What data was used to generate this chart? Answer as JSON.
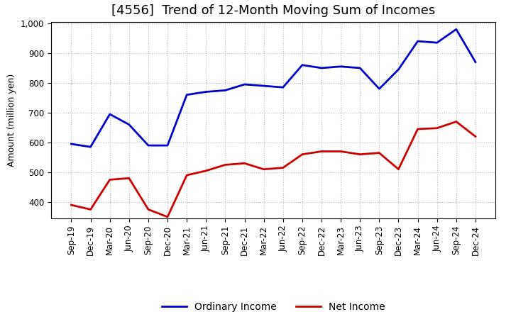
{
  "title": "[4556]  Trend of 12-Month Moving Sum of Incomes",
  "ylabel": "Amount (million yen)",
  "x_labels": [
    "Sep-19",
    "Dec-19",
    "Mar-20",
    "Jun-20",
    "Sep-20",
    "Dec-20",
    "Mar-21",
    "Jun-21",
    "Sep-21",
    "Dec-21",
    "Mar-22",
    "Jun-22",
    "Sep-22",
    "Dec-22",
    "Mar-23",
    "Jun-23",
    "Sep-23",
    "Dec-23",
    "Mar-24",
    "Jun-24",
    "Sep-24",
    "Dec-24"
  ],
  "ordinary_income": [
    595,
    585,
    695,
    660,
    590,
    590,
    760,
    770,
    775,
    795,
    790,
    785,
    860,
    850,
    855,
    850,
    780,
    845,
    940,
    935,
    980,
    870
  ],
  "net_income": [
    390,
    375,
    475,
    480,
    375,
    350,
    490,
    505,
    525,
    530,
    510,
    515,
    560,
    570,
    570,
    560,
    565,
    510,
    645,
    648,
    670,
    620
  ],
  "ordinary_color": "#0000cc",
  "net_color": "#cc0000",
  "ylim": [
    345,
    1005
  ],
  "yticks": [
    400,
    500,
    600,
    700,
    800,
    900,
    1000
  ],
  "background_color": "#ffffff",
  "grid_color": "#bbbbbb",
  "title_fontsize": 13,
  "axis_fontsize": 9,
  "tick_fontsize": 8.5,
  "legend_fontsize": 10,
  "linewidth": 2.0
}
